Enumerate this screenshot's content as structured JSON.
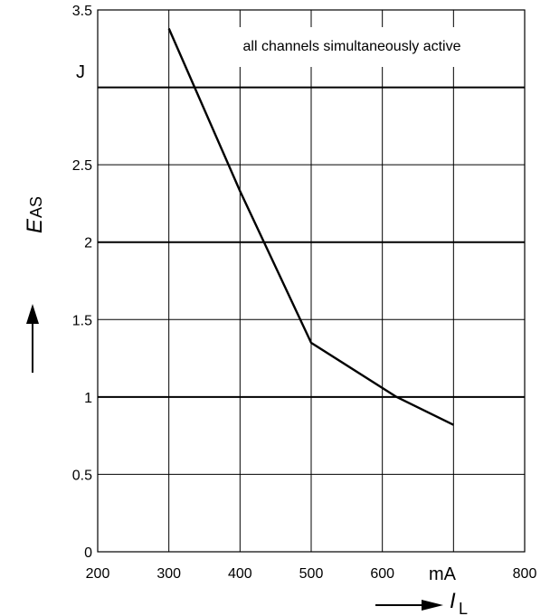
{
  "chart_data": {
    "type": "line",
    "annotation": "all channels simultaneously active",
    "xlabel": {
      "symbol": "I",
      "subscript": "L",
      "unit": "mA"
    },
    "ylabel": {
      "symbol": "E",
      "subscript": "AS",
      "unit": "J"
    },
    "xlim": [
      200,
      800
    ],
    "ylim": [
      0,
      3.5
    ],
    "x_ticks": [
      200,
      300,
      400,
      500,
      600,
      800
    ],
    "x_tick_labels": [
      "200",
      "300",
      "400",
      "500",
      "600",
      "800"
    ],
    "x_grid": [
      300,
      400,
      500,
      600,
      700
    ],
    "y_ticks": [
      0,
      0.5,
      1,
      1.5,
      2,
      2.5,
      3.5
    ],
    "y_tick_labels": [
      "0",
      "0.5",
      "1",
      "1.5",
      "2",
      "2.5",
      "3.5"
    ],
    "y_grid": [
      0.5,
      1,
      1.5,
      2,
      2.5,
      3
    ],
    "y_grid_major": [
      1,
      2,
      3
    ],
    "grid": true,
    "series": [
      {
        "x": [
          300,
          400,
          500,
          620,
          700
        ],
        "y": [
          3.38,
          2.33,
          1.35,
          1.0,
          0.82
        ]
      }
    ]
  }
}
